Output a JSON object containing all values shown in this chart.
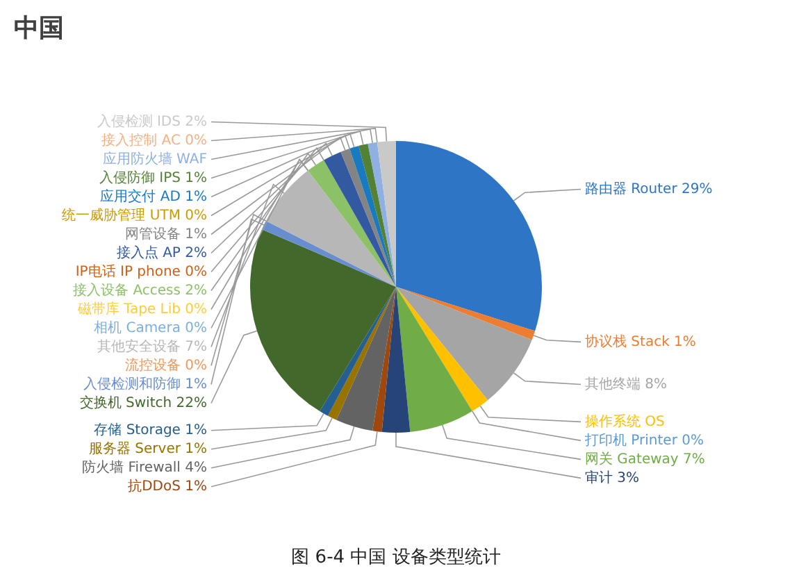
{
  "chart_data": {
    "type": "pie",
    "title": "中国",
    "categories": [
      "路由器 Router",
      "协议栈 Stack",
      "其他终端",
      "操作系统 OS",
      "打印机 Printer",
      "网关 Gateway",
      "审计",
      "抗DDoS",
      "防火墙 Firewall",
      "服务器 Server",
      "存储 Storage",
      "交换机 Switch",
      "入侵检测和防御",
      "流控设备",
      "其他安全设备",
      "磁带库 Tape Lib",
      "相机 Camera",
      "接入设备 Access",
      "IP电话 IP phone",
      "接入点 AP",
      "网管设备",
      "统一威胁管理 UTM",
      "应用交付 AD",
      "入侵防御 IPS",
      "应用防火墙 WAF",
      "接入控制 AC",
      "入侵检测 IDS"
    ],
    "values": [
      29,
      1,
      8,
      2,
      0,
      7,
      3,
      1,
      4,
      1,
      1,
      22,
      1,
      0,
      7,
      0,
      0,
      2,
      0,
      2,
      1,
      0,
      1,
      1,
      1,
      0,
      2
    ],
    "value_labels": [
      "29%",
      "1%",
      "8%",
      null,
      "0%",
      "7%",
      "3%",
      "1%",
      "4%",
      "1%",
      "1%",
      "22%",
      "1%",
      "0%",
      "7%",
      "0%",
      "0%",
      "2%",
      "0%",
      "2%",
      "1%",
      "0%",
      "1%",
      "1%",
      null,
      "0%",
      "2%"
    ],
    "colors": [
      "#2e75c6",
      "#ed7d31",
      "#a5a5a5",
      "#ffc000",
      "#5b9bd5",
      "#70ad47",
      "#264478",
      "#9e480e",
      "#636363",
      "#997300",
      "#255e91",
      "#43682b",
      "#698ed0",
      "#f1975a",
      "#b7b7b7",
      "#ffcd33",
      "#7cafdd",
      "#8cc168",
      "#d26012",
      "#335aa1",
      "#848484",
      "#cc9a00",
      "#1a7ac0",
      "#548235",
      "#8fb0e0",
      "#f4b183",
      "#c9c9c9"
    ],
    "legend": false,
    "annotations": [
      "图 6-4 中国 设备类型统计"
    ]
  }
}
